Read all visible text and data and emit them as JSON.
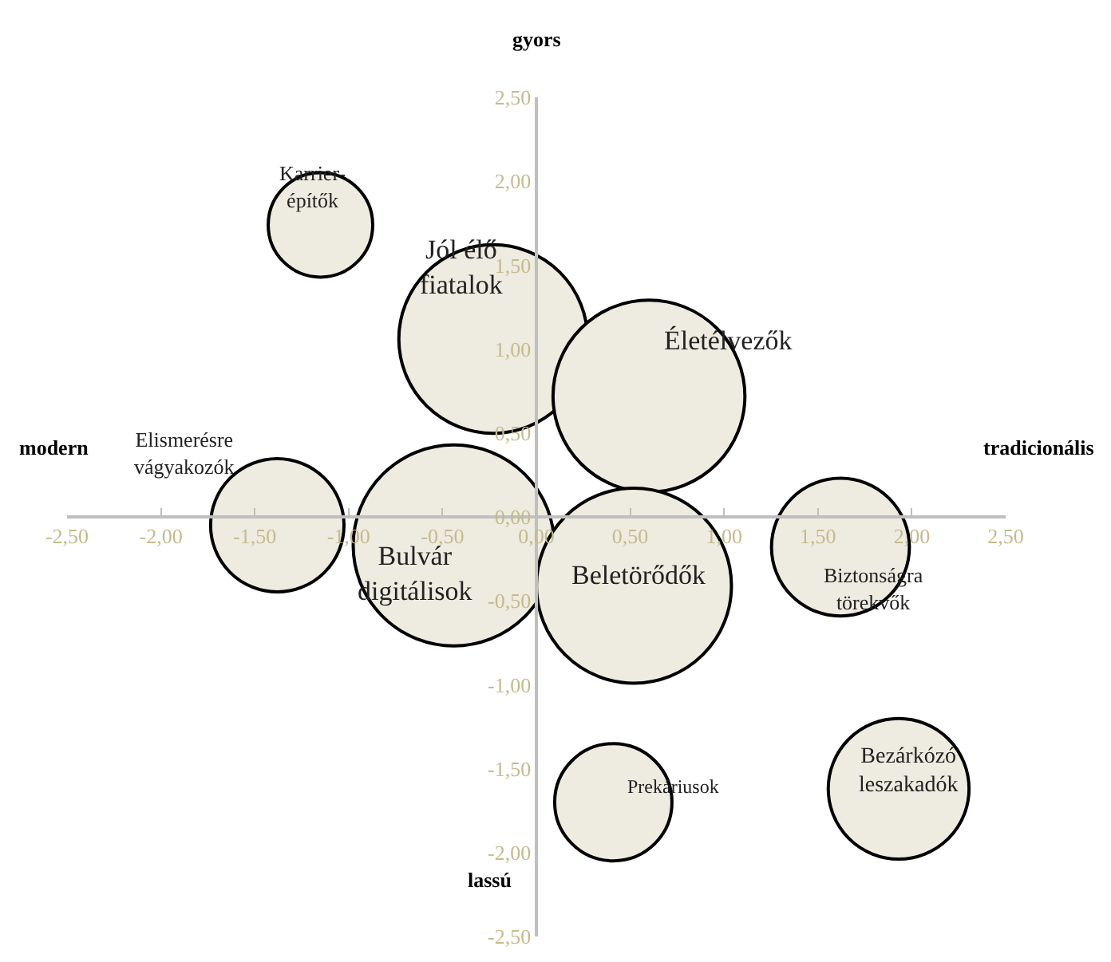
{
  "chart_data": {
    "type": "bubble",
    "series": [
      {
        "name": "Karrier-\népítők",
        "color": "#eeebe0",
        "x": [
          -1.15
        ],
        "values": [
          1.74
        ],
        "sizes": [
          0.27
        ]
      },
      {
        "name": "Jól élő\nfiatalok",
        "color": "#eeebe0",
        "x": [
          -0.23
        ],
        "values": [
          1.06
        ],
        "sizes": [
          0.88
        ]
      },
      {
        "name": "Életélvezők",
        "color": "#eeebe0",
        "x": [
          0.6
        ],
        "values": [
          0.72
        ],
        "sizes": [
          0.91
        ]
      },
      {
        "name": "Elismerésre\nvágyakozók",
        "color": "#eeebe0",
        "x": [
          -1.38
        ],
        "values": [
          -0.05
        ],
        "sizes": [
          0.44
        ]
      },
      {
        "name": "Bulvár\ndigitálisok",
        "color": "#eeebe0",
        "x": [
          -0.44
        ],
        "values": [
          -0.17
        ],
        "sizes": [
          1
        ]
      },
      {
        "name": "Beletörődők",
        "color": "#eeebe0",
        "x": [
          0.52
        ],
        "values": [
          -0.41
        ],
        "sizes": [
          0.94
        ]
      },
      {
        "name": "Biztonságra\ntörekvők",
        "color": "#eeebe0",
        "x": [
          1.62
        ],
        "values": [
          -0.18
        ],
        "sizes": [
          0.47
        ]
      },
      {
        "name": "Prekáriusok",
        "color": "#eeebe0",
        "x": [
          0.41
        ],
        "values": [
          -1.7
        ],
        "sizes": [
          0.34
        ]
      },
      {
        "name": "Bezárkózó\nleszakadók",
        "color": "#eeebe0",
        "x": [
          1.93
        ],
        "values": [
          -1.62
        ],
        "sizes": [
          0.49
        ]
      }
    ],
    "annotations": [
      "gyors",
      "lassú",
      "modern",
      "tradicionális"
    ],
    "xlim": [
      -2.5,
      2.5
    ],
    "xticks": [
      {
        "value": -2.5,
        "label": "-2,50"
      },
      {
        "value": -2,
        "label": "-2,00"
      },
      {
        "value": -1.5,
        "label": "-1,50"
      },
      {
        "value": -1,
        "label": "-1,00"
      },
      {
        "value": -0.5,
        "label": "-0,50"
      },
      {
        "value": 0,
        "label": "0,00"
      },
      {
        "value": 0.5,
        "label": "0,50"
      },
      {
        "value": 1,
        "label": "1,00"
      },
      {
        "value": 1.5,
        "label": "1,50"
      },
      {
        "value": 2,
        "label": "2,00"
      },
      {
        "value": 2.5,
        "label": "2,50"
      }
    ],
    "ylim": [
      -2.5,
      2.5
    ],
    "yticks": [
      {
        "value": -2.5,
        "label": "-2,50"
      },
      {
        "value": -2,
        "label": "-2,00"
      },
      {
        "value": -1.5,
        "label": "-1,50"
      },
      {
        "value": -1,
        "label": "-1,00"
      },
      {
        "value": -0.5,
        "label": "-0,50"
      },
      {
        "value": 0,
        "label": "0,00"
      },
      {
        "value": 0.5,
        "label": "0,50"
      },
      {
        "value": 1,
        "label": "1,00"
      },
      {
        "value": 1.5,
        "label": "1,50"
      },
      {
        "value": 2,
        "label": "2,00"
      },
      {
        "value": 2.5,
        "label": "2,50"
      }
    ],
    "legend": false
  }
}
